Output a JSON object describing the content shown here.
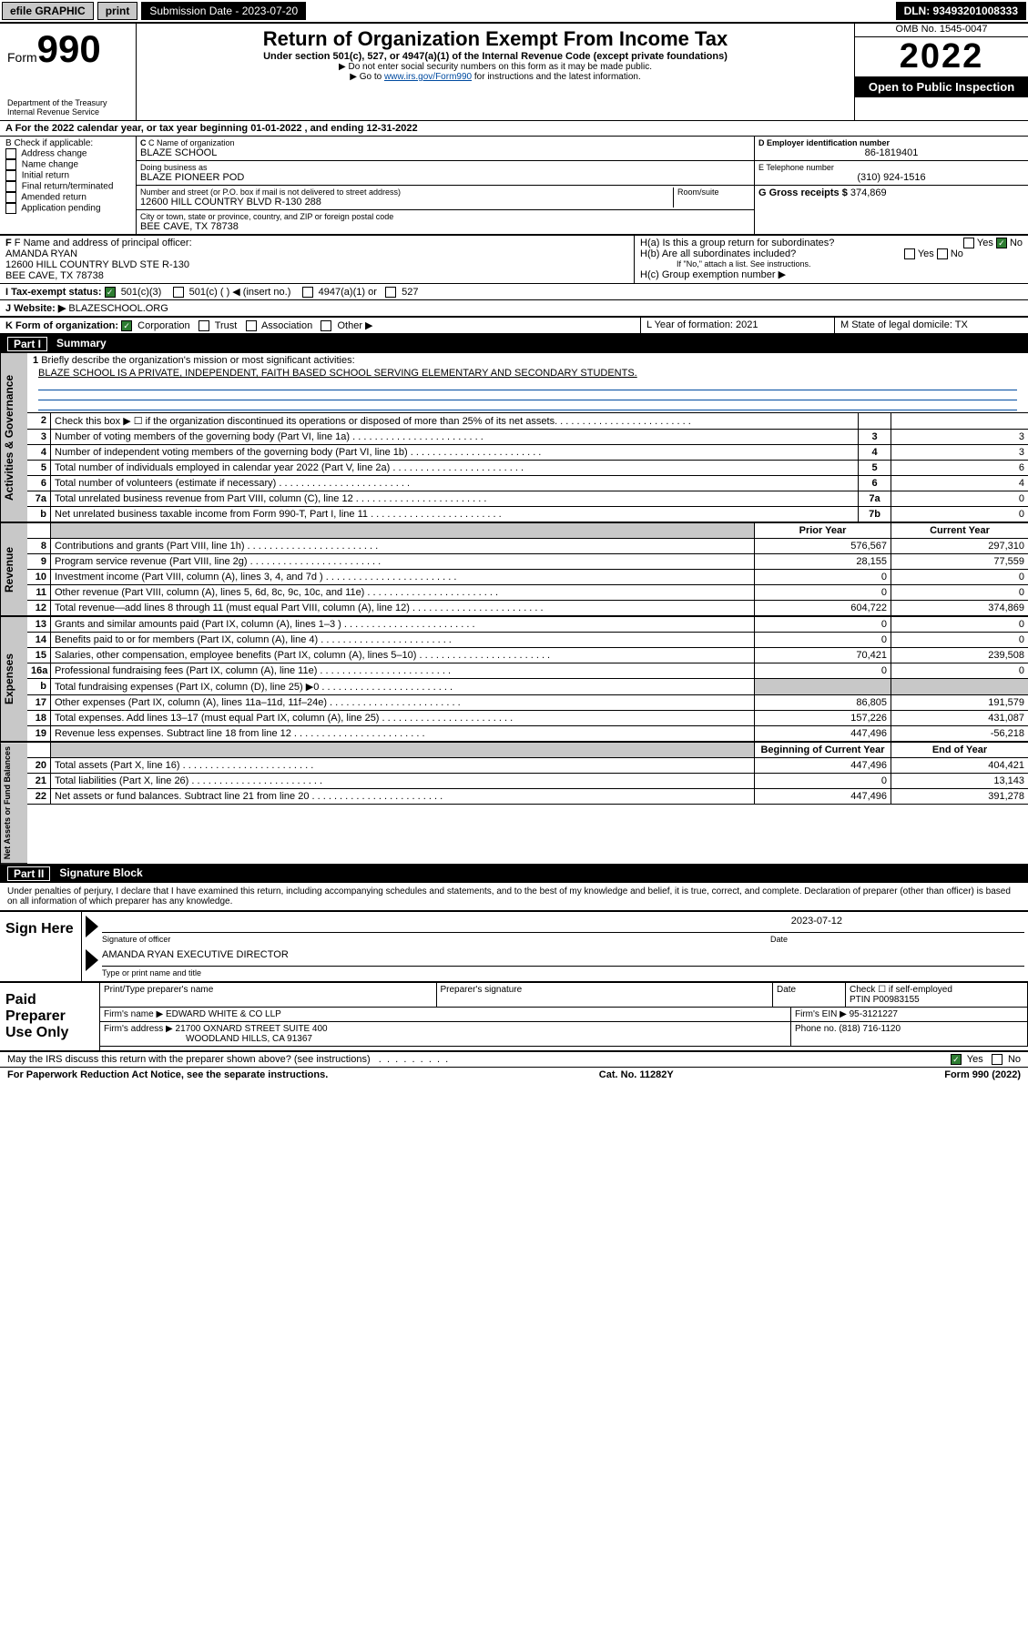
{
  "colors": {
    "link": "#004ba0",
    "accent_green": "#2e7d32",
    "gray_bg": "#c8c8c8",
    "black": "#000000",
    "white": "#ffffff"
  },
  "topbar": {
    "efile": "efile GRAPHIC",
    "print": "print",
    "sub_label": "Submission Date - 2023-07-20",
    "dln": "DLN: 93493201008333"
  },
  "header": {
    "form_label": "Form",
    "form_number": "990",
    "dept": "Department of the Treasury",
    "irs": "Internal Revenue Service",
    "title": "Return of Organization Exempt From Income Tax",
    "subtitle": "Under section 501(c), 527, or 4947(a)(1) of the Internal Revenue Code (except private foundations)",
    "note1": "▶ Do not enter social security numbers on this form as it may be made public.",
    "note2_pre": "▶ Go to ",
    "note2_link": "www.irs.gov/Form990",
    "note2_post": " for instructions and the latest information.",
    "omb": "OMB No. 1545-0047",
    "year": "2022",
    "open": "Open to Public Inspection"
  },
  "row_a": "A For the 2022 calendar year, or tax year beginning 01-01-2022    , and ending 12-31-2022",
  "box_b": {
    "label": "B Check if applicable:",
    "opts": [
      "Address change",
      "Name change",
      "Initial return",
      "Final return/terminated",
      "Amended return",
      "Application pending"
    ]
  },
  "box_c": {
    "name_lbl": "C Name of organization",
    "name": "BLAZE SCHOOL",
    "dba_lbl": "Doing business as",
    "dba": "BLAZE PIONEER POD",
    "addr_lbl": "Number and street (or P.O. box if mail is not delivered to street address)",
    "room_lbl": "Room/suite",
    "addr": "12600 HILL COUNTRY BLVD R-130 288",
    "city_lbl": "City or town, state or province, country, and ZIP or foreign postal code",
    "city": "BEE CAVE, TX  78738"
  },
  "box_d": {
    "lbl": "D Employer identification number",
    "val": "86-1819401"
  },
  "box_e": {
    "lbl": "E Telephone number",
    "val": "(310) 924-1516"
  },
  "box_g": {
    "lbl": "G Gross receipts $",
    "val": "374,869"
  },
  "box_f": {
    "lbl": "F Name and address of principal officer:",
    "name": "AMANDA RYAN",
    "addr1": "12600 HILL COUNTRY BLVD STE R-130",
    "addr2": "BEE CAVE, TX  78738"
  },
  "box_h": {
    "a": "H(a)  Is this a group return for subordinates?",
    "a_yes": "Yes",
    "a_no": "No",
    "b": "H(b)  Are all subordinates included?",
    "b_note": "If \"No,\" attach a list. See instructions.",
    "c": "H(c)  Group exemption number ▶"
  },
  "row_i": {
    "lbl": "I     Tax-exempt status:",
    "o1": "501(c)(3)",
    "o2": "501(c) (   ) ◀ (insert no.)",
    "o3": "4947(a)(1) or",
    "o4": "527"
  },
  "row_j": {
    "lbl": "J    Website: ▶",
    "val": "BLAZESCHOOL.ORG"
  },
  "row_k": {
    "lbl": "K Form of organization:",
    "o1": "Corporation",
    "o2": "Trust",
    "o3": "Association",
    "o4": "Other ▶"
  },
  "row_l": {
    "lbl": "L Year of formation: 2021"
  },
  "row_m": {
    "lbl": "M State of legal domicile: TX"
  },
  "part1": {
    "hdr_num": "Part I",
    "hdr_title": "Summary",
    "tab_ag": "Activities & Governance",
    "tab_rev": "Revenue",
    "tab_exp": "Expenses",
    "tab_na": "Net Assets or Fund Balances",
    "l1": "Briefly describe the organization's mission or most significant activities:",
    "l1_desc": "BLAZE SCHOOL IS A PRIVATE, INDEPENDENT, FAITH BASED SCHOOL SERVING ELEMENTARY AND SECONDARY STUDENTS.",
    "rows_ag": [
      {
        "n": "2",
        "d": "Check this box ▶ ☐  if the organization discontinued its operations or disposed of more than 25% of its net assets.",
        "k": "",
        "v": ""
      },
      {
        "n": "3",
        "d": "Number of voting members of the governing body (Part VI, line 1a)",
        "k": "3",
        "v": "3"
      },
      {
        "n": "4",
        "d": "Number of independent voting members of the governing body (Part VI, line 1b)",
        "k": "4",
        "v": "3"
      },
      {
        "n": "5",
        "d": "Total number of individuals employed in calendar year 2022 (Part V, line 2a)",
        "k": "5",
        "v": "6"
      },
      {
        "n": "6",
        "d": "Total number of volunteers (estimate if necessary)",
        "k": "6",
        "v": "4"
      },
      {
        "n": "7a",
        "d": "Total unrelated business revenue from Part VIII, column (C), line 12",
        "k": "7a",
        "v": "0"
      },
      {
        "n": "b",
        "d": "Net unrelated business taxable income from Form 990-T, Part I, line 11",
        "k": "7b",
        "v": "0"
      }
    ],
    "col_prior": "Prior Year",
    "col_curr": "Current Year",
    "rows_rev": [
      {
        "n": "8",
        "d": "Contributions and grants (Part VIII, line 1h)",
        "p": "576,567",
        "c": "297,310"
      },
      {
        "n": "9",
        "d": "Program service revenue (Part VIII, line 2g)",
        "p": "28,155",
        "c": "77,559"
      },
      {
        "n": "10",
        "d": "Investment income (Part VIII, column (A), lines 3, 4, and 7d )",
        "p": "0",
        "c": "0"
      },
      {
        "n": "11",
        "d": "Other revenue (Part VIII, column (A), lines 5, 6d, 8c, 9c, 10c, and 11e)",
        "p": "0",
        "c": "0"
      },
      {
        "n": "12",
        "d": "Total revenue—add lines 8 through 11 (must equal Part VIII, column (A), line 12)",
        "p": "604,722",
        "c": "374,869"
      }
    ],
    "rows_exp": [
      {
        "n": "13",
        "d": "Grants and similar amounts paid (Part IX, column (A), lines 1–3 )",
        "p": "0",
        "c": "0"
      },
      {
        "n": "14",
        "d": "Benefits paid to or for members (Part IX, column (A), line 4)",
        "p": "0",
        "c": "0"
      },
      {
        "n": "15",
        "d": "Salaries, other compensation, employee benefits (Part IX, column (A), lines 5–10)",
        "p": "70,421",
        "c": "239,508"
      },
      {
        "n": "16a",
        "d": "Professional fundraising fees (Part IX, column (A), line 11e)",
        "p": "0",
        "c": "0"
      },
      {
        "n": "b",
        "d": "Total fundraising expenses (Part IX, column (D), line 25) ▶0",
        "p": "",
        "c": "",
        "shade": true
      },
      {
        "n": "17",
        "d": "Other expenses (Part IX, column (A), lines 11a–11d, 11f–24e)",
        "p": "86,805",
        "c": "191,579"
      },
      {
        "n": "18",
        "d": "Total expenses. Add lines 13–17 (must equal Part IX, column (A), line 25)",
        "p": "157,226",
        "c": "431,087"
      },
      {
        "n": "19",
        "d": "Revenue less expenses. Subtract line 18 from line 12",
        "p": "447,496",
        "c": "-56,218"
      }
    ],
    "col_beg": "Beginning of Current Year",
    "col_end": "End of Year",
    "rows_na": [
      {
        "n": "20",
        "d": "Total assets (Part X, line 16)",
        "p": "447,496",
        "c": "404,421"
      },
      {
        "n": "21",
        "d": "Total liabilities (Part X, line 26)",
        "p": "0",
        "c": "13,143"
      },
      {
        "n": "22",
        "d": "Net assets or fund balances. Subtract line 21 from line 20",
        "p": "447,496",
        "c": "391,278"
      }
    ]
  },
  "part2": {
    "hdr_num": "Part II",
    "hdr_title": "Signature Block",
    "decl": "Under penalties of perjury, I declare that I have examined this return, including accompanying schedules and statements, and to the best of my knowledge and belief, it is true, correct, and complete. Declaration of preparer (other than officer) is based on all information of which preparer has any knowledge."
  },
  "sign": {
    "lbl": "Sign Here",
    "sig_of": "Signature of officer",
    "date_lbl": "Date",
    "date": "2023-07-12",
    "name": "AMANDA RYAN  EXECUTIVE DIRECTOR",
    "name_lbl": "Type or print name and title"
  },
  "prep": {
    "lbl": "Paid Preparer Use Only",
    "c1": "Print/Type preparer's name",
    "c2": "Preparer's signature",
    "c3": "Date",
    "c4_chk": "Check ☐ if self-employed",
    "c4_ptin_lbl": "PTIN",
    "c4_ptin": "P00983155",
    "firm_name_lbl": "Firm's name    ▶",
    "firm_name": "EDWARD WHITE & CO LLP",
    "firm_ein_lbl": "Firm's EIN ▶",
    "firm_ein": "95-3121227",
    "firm_addr_lbl": "Firm's address ▶",
    "firm_addr1": "21700 OXNARD STREET SUITE 400",
    "firm_addr2": "WOODLAND HILLS, CA  91367",
    "phone_lbl": "Phone no.",
    "phone": "(818) 716-1120"
  },
  "discuss": {
    "q": "May the IRS discuss this return with the preparer shown above? (see instructions)",
    "yes": "Yes",
    "no": "No"
  },
  "footer": {
    "left": "For Paperwork Reduction Act Notice, see the separate instructions.",
    "mid": "Cat. No. 11282Y",
    "right": "Form 990 (2022)"
  }
}
